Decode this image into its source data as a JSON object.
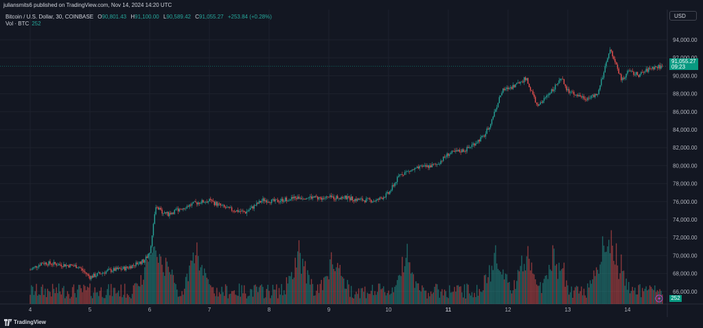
{
  "header": {
    "publish_line": "juliansmits6 published on TradingView.com, Nov 14, 2024 14:20 UTC"
  },
  "legend": {
    "symbol": "Bitcoin / U.S. Dollar, 30, COINBASE",
    "o_label": "O",
    "o_value": "90,801.43",
    "h_label": "H",
    "h_value": "91,100.00",
    "l_label": "L",
    "l_value": "90,589.42",
    "c_label": "C",
    "c_value": "91,055.27",
    "change": "+253.84 (+0.28%)",
    "vol_label": "Vol · BTC",
    "vol_value": "252"
  },
  "currency": "USD",
  "last_price": {
    "value": "91,055.27",
    "countdown": "09:23"
  },
  "volume_tag": "252",
  "footer": {
    "brand": "TradingView"
  },
  "colors": {
    "up": "#26a69a",
    "down": "#ef5350",
    "background": "#131722",
    "grid": "#1e222d",
    "text": "#b2b5be",
    "accent": "#089981"
  },
  "chart_data": {
    "type": "candlestick",
    "interval": "30",
    "x_ticks": [
      "4",
      "5",
      "6",
      "7",
      "8",
      "9",
      "10",
      "11",
      "12",
      "13",
      "14"
    ],
    "y_ticks": [
      66000,
      68000,
      70000,
      72000,
      74000,
      76000,
      78000,
      80000,
      82000,
      84000,
      86000,
      88000,
      90000,
      92000,
      94000
    ],
    "y_range": [
      64500,
      95000
    ],
    "price_path": [
      [
        4,
        68400
      ],
      [
        4.2,
        69200
      ],
      [
        4.5,
        69000
      ],
      [
        4.8,
        68800
      ],
      [
        5.0,
        67600
      ],
      [
        5.3,
        68300
      ],
      [
        5.6,
        68600
      ],
      [
        5.9,
        69400
      ],
      [
        6.0,
        70200
      ],
      [
        6.1,
        75300
      ],
      [
        6.3,
        74600
      ],
      [
        6.5,
        75200
      ],
      [
        6.8,
        75900
      ],
      [
        7.0,
        76100
      ],
      [
        7.3,
        75200
      ],
      [
        7.6,
        74800
      ],
      [
        7.9,
        76200
      ],
      [
        8.1,
        76000
      ],
      [
        8.3,
        76300
      ],
      [
        8.6,
        76500
      ],
      [
        8.9,
        76400
      ],
      [
        9.2,
        76500
      ],
      [
        9.5,
        76200
      ],
      [
        9.8,
        76100
      ],
      [
        10.0,
        76900
      ],
      [
        10.2,
        79100
      ],
      [
        10.5,
        79700
      ],
      [
        10.8,
        80100
      ],
      [
        11.0,
        81300
      ],
      [
        11.3,
        81800
      ],
      [
        11.6,
        83300
      ],
      [
        11.7,
        84600
      ],
      [
        11.9,
        88300
      ],
      [
        12.1,
        88900
      ],
      [
        12.3,
        89700
      ],
      [
        12.5,
        86500
      ],
      [
        12.7,
        88200
      ],
      [
        12.9,
        89600
      ],
      [
        13.0,
        88300
      ],
      [
        13.3,
        87500
      ],
      [
        13.5,
        87800
      ],
      [
        13.7,
        93000
      ],
      [
        13.9,
        89500
      ],
      [
        14.0,
        90400
      ],
      [
        14.2,
        90100
      ],
      [
        14.4,
        90900
      ],
      [
        14.6,
        91055
      ]
    ],
    "volume_spikes_x": [
      6.0,
      6.2,
      6.8,
      8.5,
      9.1,
      10.3,
      11.8,
      12.3,
      12.8,
      13.6,
      13.8
    ]
  }
}
